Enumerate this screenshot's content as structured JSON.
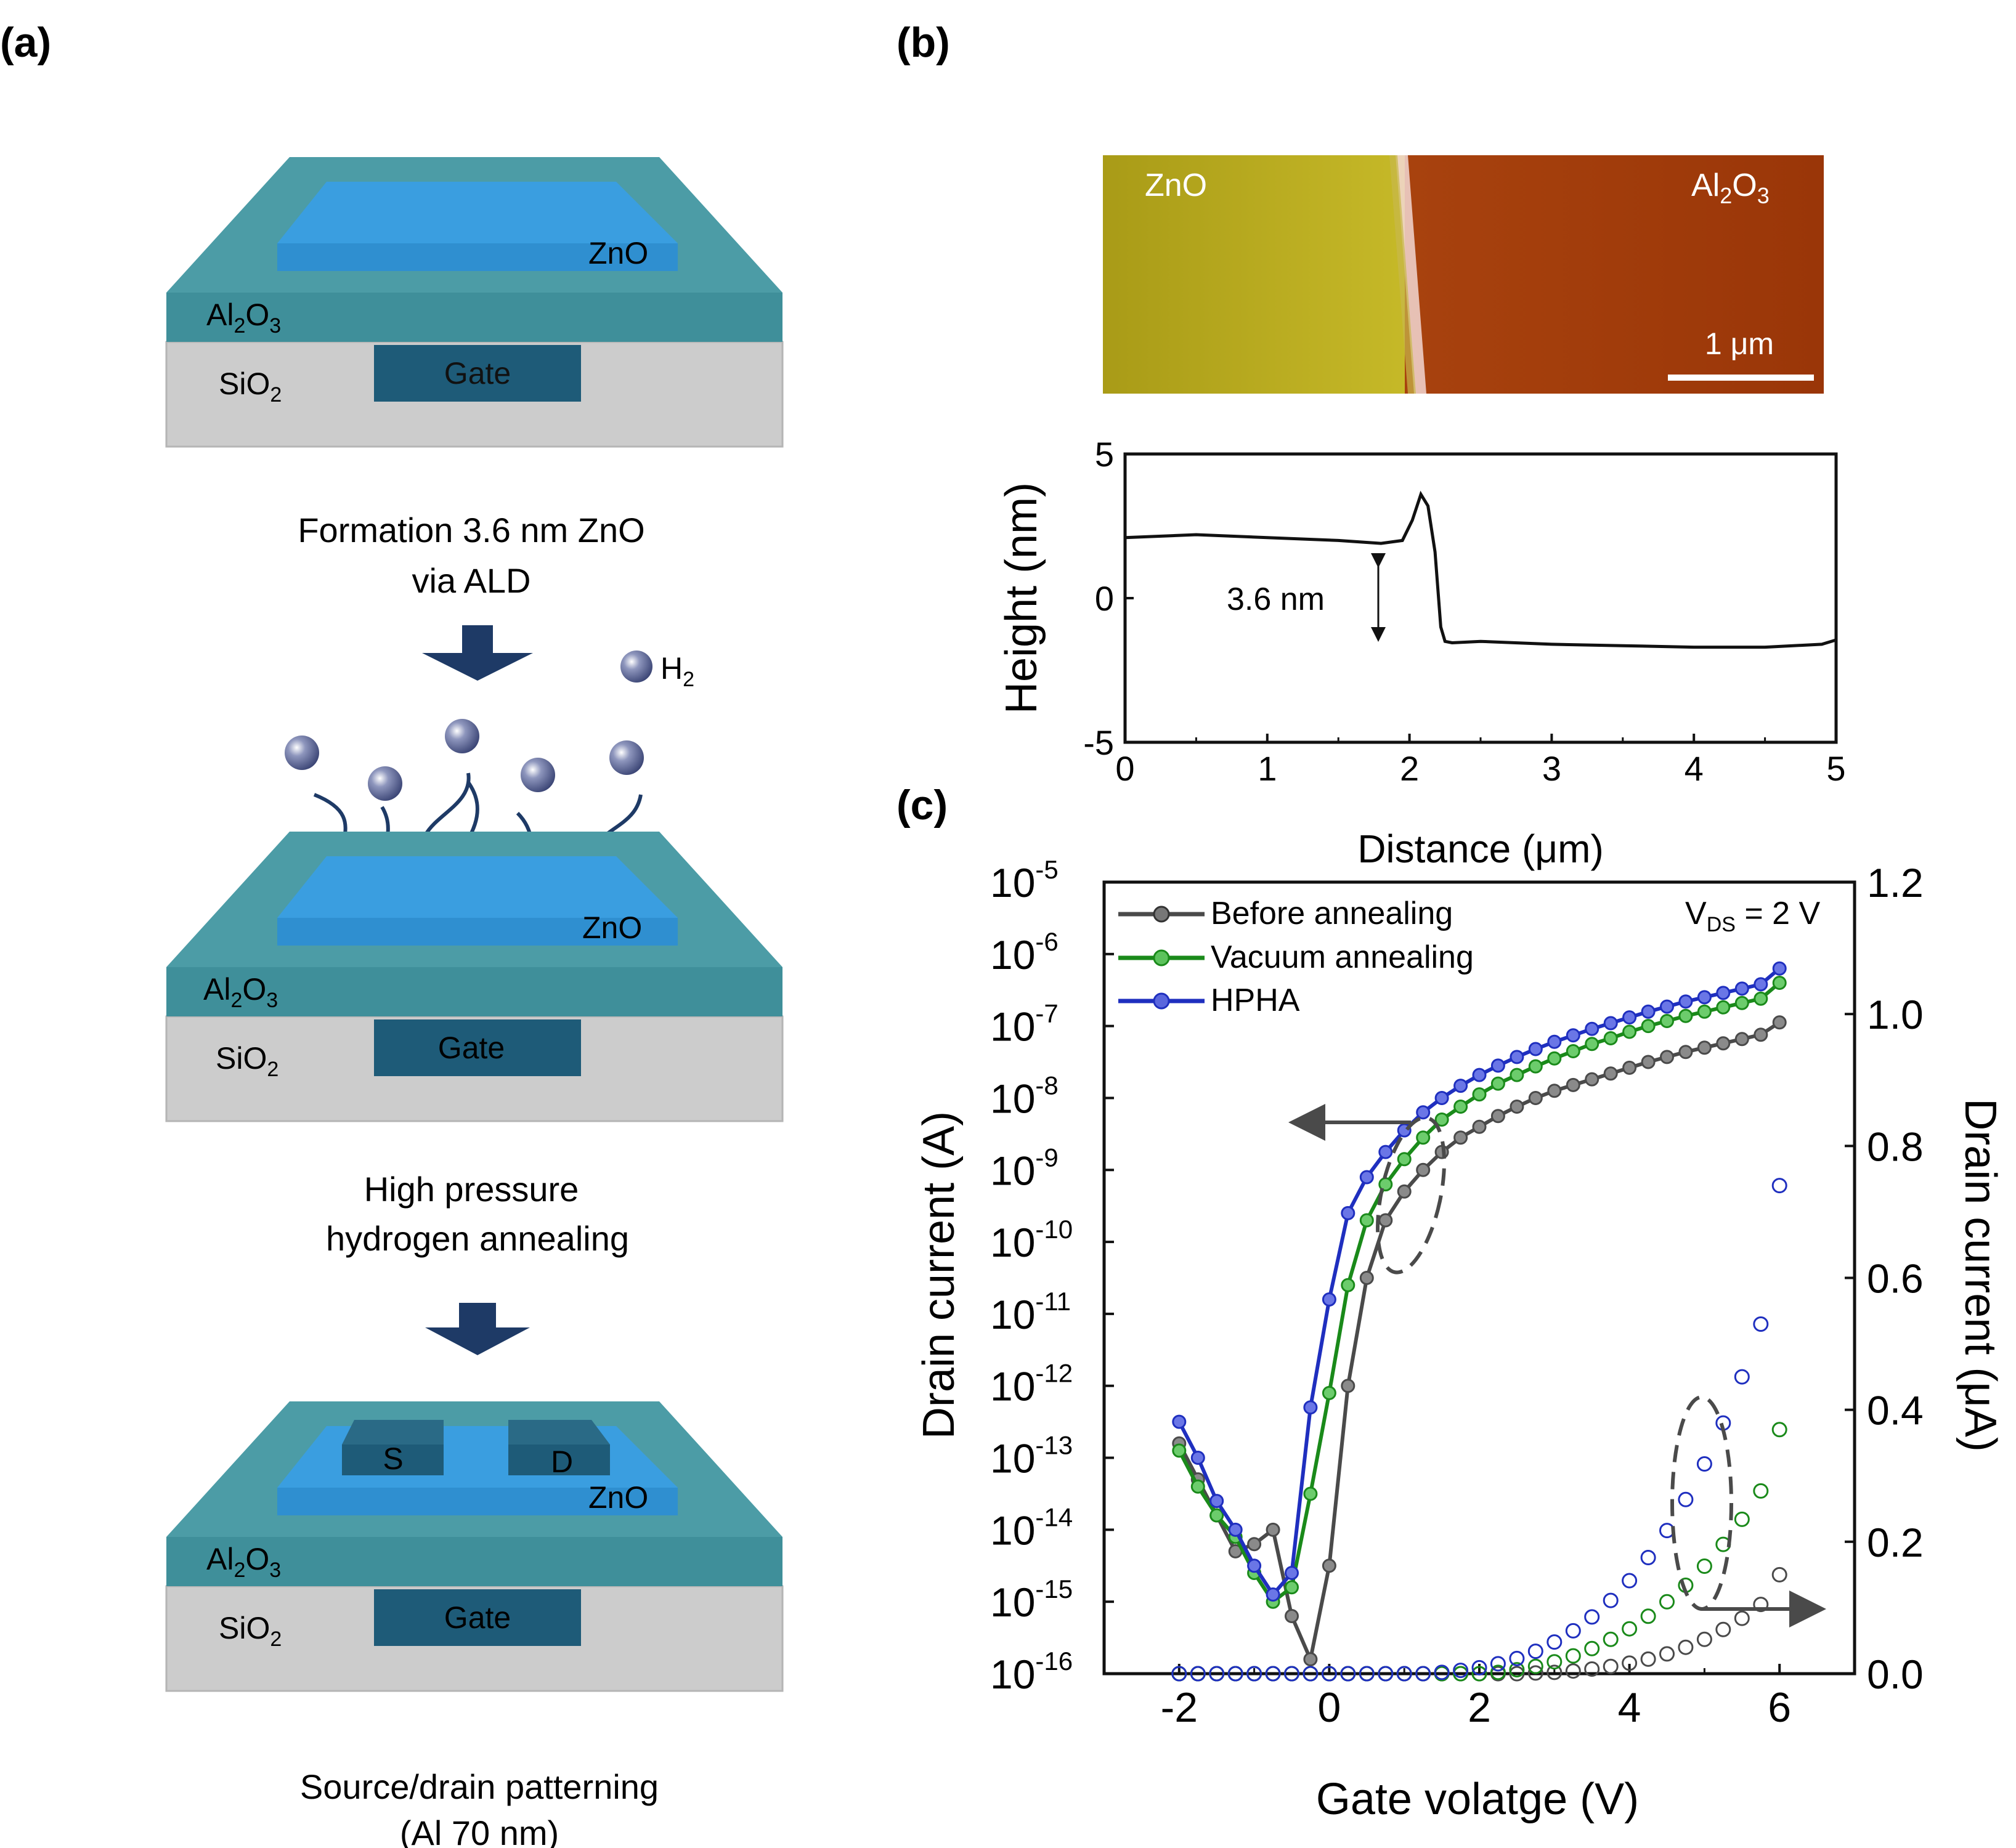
{
  "panel_a": {
    "label": "(a)",
    "zno_label": "ZnO",
    "al2o3_base": "Al",
    "al2o3_sub1": "2",
    "al2o3_mid": "O",
    "al2o3_sub2": "3",
    "sio2_base": "SiO",
    "sio2_sub": "2",
    "gate_label": "Gate",
    "source_label": "S",
    "drain_label": "D",
    "h2_base": "H",
    "h2_sub": "2",
    "step1_line1": "Formation  3.6 nm ZnO",
    "step1_line2": "via ALD",
    "step2_line1": "High  pressure",
    "step2_line2": "hydrogen  annealing",
    "step3_line1": "Source/drain  patterning",
    "step3_line2": "(Al 70 nm)",
    "colors": {
      "al2o3": "#3f8f9a",
      "al2o3_top": "#559fa8",
      "zno": "#3a9ee0",
      "gate": "#1e5b78",
      "sio2": "#c8c8c8",
      "arrow": "#1e3a66",
      "h2": "#55608a"
    }
  },
  "panel_b": {
    "label": "(b)",
    "afm": {
      "zno_label": "ZnO",
      "al2o3_base": "Al",
      "al2o3_sub1": "2",
      "al2o3_mid": "O",
      "al2o3_sub2": "3",
      "scale_bar": "1 μm",
      "colors": {
        "zno": "#b8a81c",
        "al2o3": "#a23a0c",
        "edge": "#f2d7d2"
      }
    },
    "chart_data": {
      "type": "line",
      "title": "",
      "xlabel": "Distance (μm)",
      "ylabel": "Height (nm)",
      "xlim": [
        0,
        5
      ],
      "ylim": [
        -5,
        5
      ],
      "x_ticks": [
        0,
        1,
        2,
        3,
        4,
        5
      ],
      "y_ticks": [
        -5,
        0,
        5
      ],
      "annotation": "3.6 nm",
      "series": [
        {
          "name": "profile",
          "x": [
            0,
            0.5,
            1.0,
            1.5,
            1.8,
            1.95,
            2.02,
            2.08,
            2.13,
            2.18,
            2.22,
            2.25,
            2.3,
            2.5,
            3.0,
            3.5,
            4.0,
            4.5,
            4.9,
            5.0
          ],
          "y": [
            2.1,
            2.2,
            2.1,
            2.0,
            1.9,
            2.0,
            2.7,
            3.6,
            3.2,
            1.6,
            -1.0,
            -1.5,
            -1.55,
            -1.5,
            -1.6,
            -1.65,
            -1.7,
            -1.7,
            -1.6,
            -1.45
          ]
        }
      ]
    }
  },
  "panel_c": {
    "label": "(c)",
    "chart_data": {
      "type": "line",
      "xlabel": "Gate volatge (V)",
      "ylabel_left": "Drain current (A)",
      "ylabel_right": "Drain current (μA)",
      "xlim": [
        -3,
        7
      ],
      "ylim_left_log10": [
        -16,
        -5
      ],
      "ylim_right": [
        0.0,
        1.2
      ],
      "x_ticks": [
        -2,
        0,
        2,
        4,
        6
      ],
      "left_ticks_base": "10",
      "left_tick_exponents": [
        "-16",
        "-15",
        "-14",
        "-13",
        "-12",
        "-11",
        "-10",
        "-9",
        "-8",
        "-7",
        "-6",
        "-5"
      ],
      "right_ticks": [
        "0.0",
        "0.2",
        "0.4",
        "0.6",
        "0.8",
        "1.0",
        "1.2"
      ],
      "annotation_base": "V",
      "annotation_sub": "DS",
      "annotation_rest": " = 2 V",
      "log_x": [
        -2,
        -1.75,
        -1.5,
        -1.25,
        -1,
        -0.75,
        -0.5,
        -0.25,
        0,
        0.25,
        0.5,
        0.75,
        1,
        1.25,
        1.5,
        1.75,
        2,
        2.25,
        2.5,
        2.75,
        3,
        3.25,
        3.5,
        3.75,
        4,
        4.25,
        4.5,
        4.75,
        5,
        5.25,
        5.5,
        5.75,
        6
      ],
      "lin_x": [
        -2,
        -1.75,
        -1.5,
        -1.25,
        -1,
        -0.75,
        -0.5,
        -0.25,
        0,
        0.25,
        0.5,
        0.75,
        1,
        1.25,
        1.5,
        1.75,
        2,
        2.25,
        2.5,
        2.75,
        3,
        3.25,
        3.5,
        3.75,
        4,
        4.25,
        4.5,
        4.75,
        5,
        5.25,
        5.5,
        5.75,
        6
      ],
      "series": [
        {
          "name": "Before annealing",
          "color": "#4a4a4a",
          "log10_current": [
            -12.8,
            -13.3,
            -13.8,
            -14.3,
            -14.2,
            -14.0,
            -15.2,
            -15.8,
            -14.5,
            -12.0,
            -10.5,
            -9.7,
            -9.3,
            -9.0,
            -8.75,
            -8.55,
            -8.4,
            -8.25,
            -8.12,
            -8.0,
            -7.9,
            -7.82,
            -7.74,
            -7.66,
            -7.58,
            -7.5,
            -7.43,
            -7.36,
            -7.3,
            -7.24,
            -7.18,
            -7.12,
            -6.95
          ],
          "current_uA": [
            0,
            0,
            0,
            0,
            0,
            0,
            0,
            0,
            0,
            0,
            0,
            0,
            0,
            0,
            0,
            0,
            0,
            0,
            0,
            0.001,
            0.002,
            0.004,
            0.007,
            0.011,
            0.016,
            0.022,
            0.03,
            0.04,
            0.052,
            0.067,
            0.084,
            0.105,
            0.15
          ]
        },
        {
          "name": "Vacuum annealing",
          "color": "#1a8a1a",
          "log10_current": [
            -12.9,
            -13.4,
            -13.8,
            -14.1,
            -14.6,
            -15.0,
            -14.8,
            -13.5,
            -12.1,
            -10.6,
            -9.7,
            -9.2,
            -8.85,
            -8.55,
            -8.3,
            -8.12,
            -7.95,
            -7.8,
            -7.68,
            -7.56,
            -7.45,
            -7.35,
            -7.25,
            -7.17,
            -7.08,
            -7.0,
            -6.93,
            -6.86,
            -6.8,
            -6.74,
            -6.68,
            -6.62,
            -6.4
          ],
          "current_uA": [
            0,
            0,
            0,
            0,
            0,
            0,
            0,
            0,
            0,
            0,
            0,
            0,
            0,
            0,
            0,
            0,
            0,
            0.002,
            0.006,
            0.011,
            0.018,
            0.027,
            0.038,
            0.052,
            0.068,
            0.087,
            0.109,
            0.134,
            0.163,
            0.196,
            0.234,
            0.277,
            0.37
          ]
        },
        {
          "name": "HPHA",
          "color": "#1f2fbf",
          "log10_current": [
            -12.5,
            -13.0,
            -13.6,
            -14.0,
            -14.5,
            -14.9,
            -14.6,
            -12.3,
            -10.8,
            -9.6,
            -9.1,
            -8.75,
            -8.45,
            -8.2,
            -8.0,
            -7.83,
            -7.68,
            -7.55,
            -7.43,
            -7.32,
            -7.22,
            -7.13,
            -7.04,
            -6.96,
            -6.88,
            -6.8,
            -6.73,
            -6.66,
            -6.6,
            -6.54,
            -6.48,
            -6.42,
            -6.2
          ],
          "current_uA": [
            0,
            0,
            0,
            0,
            0,
            0,
            0,
            0,
            0,
            0,
            0,
            0,
            0,
            0,
            0.002,
            0.005,
            0.009,
            0.015,
            0.023,
            0.034,
            0.048,
            0.065,
            0.086,
            0.111,
            0.141,
            0.176,
            0.217,
            0.264,
            0.318,
            0.38,
            0.45,
            0.53,
            0.74
          ]
        }
      ]
    }
  }
}
